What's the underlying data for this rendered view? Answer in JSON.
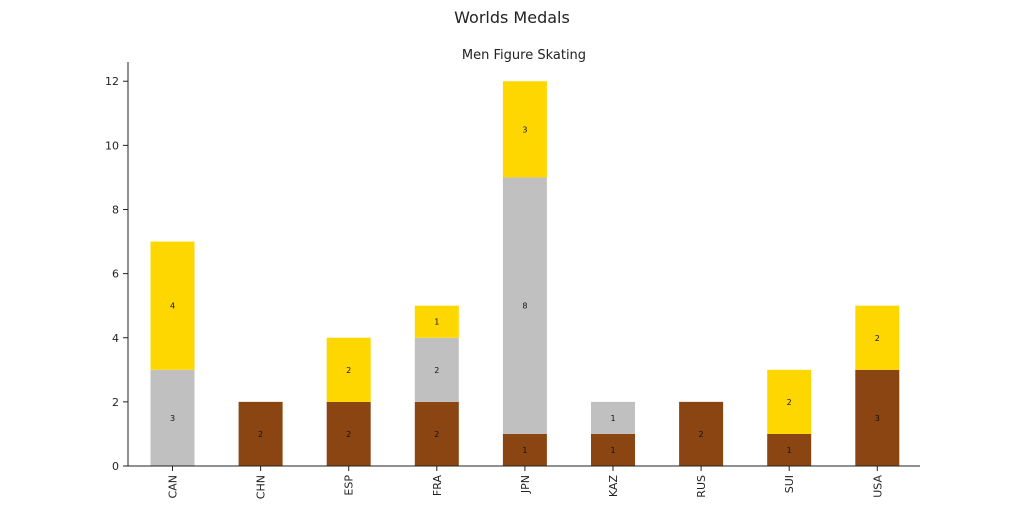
{
  "chart_data": {
    "type": "bar",
    "stacked": true,
    "title": "Worlds Medals",
    "subtitle": "Men Figure Skating",
    "xlabel": "",
    "ylabel": "",
    "categories": [
      "CAN",
      "CHN",
      "ESP",
      "FRA",
      "JPN",
      "KAZ",
      "RUS",
      "SUI",
      "USA"
    ],
    "ylim": [
      0,
      12.6
    ],
    "yticks": [
      0,
      2,
      4,
      6,
      8,
      10,
      12
    ],
    "grid": false,
    "legend": "none",
    "series": [
      {
        "color": "#8B4513",
        "values": [
          0,
          2,
          2,
          2,
          1,
          1,
          2,
          1,
          3
        ]
      },
      {
        "color": "#C0C0C0",
        "values": [
          3,
          0,
          0,
          2,
          8,
          1,
          0,
          0,
          0
        ]
      },
      {
        "color": "#FFD700",
        "values": [
          4,
          0,
          2,
          1,
          3,
          0,
          0,
          2,
          2
        ]
      }
    ]
  }
}
